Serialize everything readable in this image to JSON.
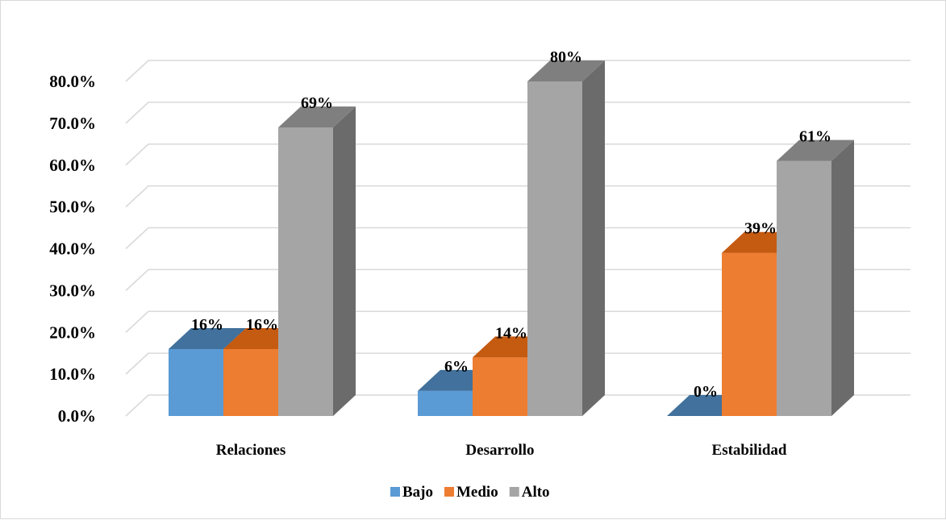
{
  "chart_data": {
    "type": "bar",
    "style": "3d-clustered-column",
    "categories": [
      "Relaciones",
      "Desarrollo",
      "Estabilidad"
    ],
    "series": [
      {
        "name": "Bajo",
        "color": "#5b9bd5",
        "top_color": "#41719c",
        "side_color": "#41719c",
        "values": [
          16,
          6,
          0
        ],
        "labels": [
          "16%",
          "6%",
          "0%"
        ]
      },
      {
        "name": "Medio",
        "color": "#ed7d31",
        "top_color": "#c55a11",
        "side_color": "#c55a11",
        "values": [
          16,
          14,
          39
        ],
        "labels": [
          "16%",
          "14%",
          "39%"
        ]
      },
      {
        "name": "Alto",
        "color": "#a5a5a5",
        "top_color": "#7f7f7f",
        "side_color": "#6b6b6b",
        "values": [
          69,
          80,
          61
        ],
        "labels": [
          "69%",
          "80%",
          "61%"
        ]
      }
    ],
    "y_ticks": [
      "0.0%",
      "10.0%",
      "20.0%",
      "30.0%",
      "40.0%",
      "50.0%",
      "60.0%",
      "70.0%",
      "80.0%"
    ],
    "ylim": [
      0,
      80
    ],
    "grid": true,
    "legend_position": "bottom",
    "title": "",
    "xlabel": "",
    "ylabel": ""
  }
}
